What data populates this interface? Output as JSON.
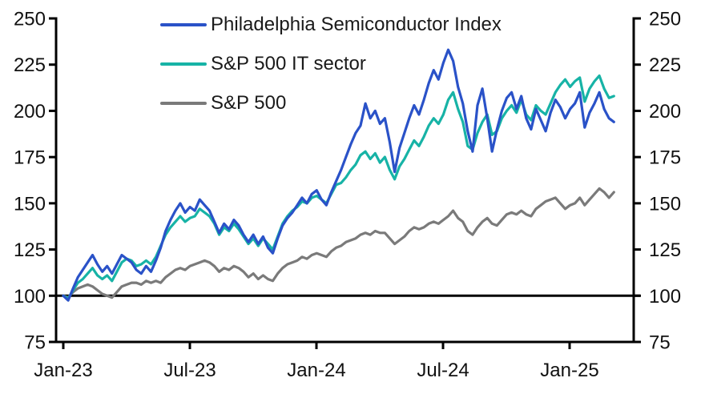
{
  "chart_data": {
    "type": "line",
    "title": "",
    "xlabel": "",
    "ylabel": "",
    "ylim": [
      75,
      250
    ],
    "y_ticks": [
      75,
      100,
      125,
      150,
      175,
      200,
      225,
      250
    ],
    "y_axis_sides": "both",
    "x_tick_labels": [
      "Jan-23",
      "Jul-23",
      "Jan-24",
      "Jul-24",
      "Jan-25"
    ],
    "x_tick_months": [
      0,
      6,
      12,
      18,
      24
    ],
    "x_start_month": 0,
    "x_end_month": 26.1,
    "x_sampling": "weekly, months since Jan-2023, indexed Jan-2023 = 100",
    "baseline_value": 100,
    "grid": false,
    "legend_position": "top-left",
    "axis_color": "#000000",
    "series": [
      {
        "name": "Philadelphia Semiconductor Index",
        "color": "#2a52c8",
        "values": [
          100,
          97.5,
          104,
          110,
          114,
          118,
          122,
          117,
          113,
          116,
          112,
          117,
          122,
          120,
          118,
          114,
          112,
          116,
          113,
          119,
          126,
          135,
          141,
          146,
          150,
          145,
          148,
          146,
          152,
          149,
          146,
          140,
          134,
          139,
          136,
          141,
          138,
          133,
          129,
          133,
          128,
          132,
          126,
          123,
          131,
          138,
          142,
          145,
          149,
          153,
          150,
          155,
          157,
          152,
          149,
          156,
          162,
          168,
          175,
          182,
          188,
          192,
          204,
          196,
          200,
          193,
          196,
          183,
          167,
          180,
          188,
          196,
          203,
          198,
          206,
          215,
          222,
          217,
          226,
          233,
          227,
          213,
          204,
          189,
          178,
          203,
          212,
          196,
          178,
          190,
          200,
          207,
          210,
          201,
          208,
          196,
          190,
          201,
          195,
          189,
          199,
          206,
          202,
          196,
          201,
          204,
          210,
          191,
          199,
          204,
          210,
          201,
          196,
          194
        ]
      },
      {
        "name": "S&P 500 IT sector",
        "color": "#17b3a6",
        "values": [
          100,
          98.5,
          103,
          107,
          109,
          112,
          115,
          111,
          109,
          111,
          108,
          113,
          118,
          120,
          119,
          116,
          117,
          119,
          117,
          121,
          127,
          133,
          137,
          140,
          143,
          140,
          142,
          143,
          147,
          145,
          143,
          139,
          133,
          137,
          135,
          139,
          136,
          132,
          128,
          131,
          127,
          131,
          128,
          125,
          132,
          139,
          143,
          146,
          148,
          151,
          150,
          153,
          154,
          152,
          150,
          155,
          160,
          161,
          164,
          168,
          171,
          176,
          178,
          174,
          177,
          172,
          175,
          168,
          163,
          170,
          174,
          179,
          184,
          181,
          186,
          192,
          196,
          193,
          198,
          206,
          210,
          201,
          194,
          181,
          179,
          188,
          194,
          198,
          187,
          189,
          196,
          200,
          203,
          199,
          206,
          198,
          195,
          203,
          200,
          198,
          204,
          210,
          214,
          217,
          213,
          216,
          218,
          205,
          212,
          216,
          219,
          212,
          207,
          208
        ]
      },
      {
        "name": "S&P 500",
        "color": "#7a7a7a",
        "values": [
          100,
          99,
          102,
          104,
          105,
          106,
          105,
          103,
          101,
          100,
          99,
          102,
          105,
          106,
          107,
          107,
          106,
          108,
          107,
          108,
          107,
          110,
          112,
          114,
          115,
          114,
          116,
          117,
          118,
          119,
          118,
          116,
          113,
          115,
          114,
          116,
          115,
          113,
          110,
          112,
          109,
          111,
          109,
          108,
          112,
          115,
          117,
          118,
          119,
          121,
          120,
          122,
          123,
          122,
          121,
          124,
          126,
          127,
          129,
          130,
          131,
          133,
          134,
          133,
          135,
          134,
          134,
          131,
          128,
          130,
          132,
          135,
          137,
          136,
          137,
          139,
          140,
          139,
          141,
          143,
          146,
          142,
          140,
          135,
          133,
          137,
          140,
          142,
          139,
          138,
          141,
          144,
          145,
          144,
          146,
          144,
          143,
          147,
          149,
          151,
          152,
          153,
          150,
          147,
          149,
          150,
          153,
          149,
          152,
          155,
          158,
          156,
          153,
          156
        ]
      }
    ]
  }
}
